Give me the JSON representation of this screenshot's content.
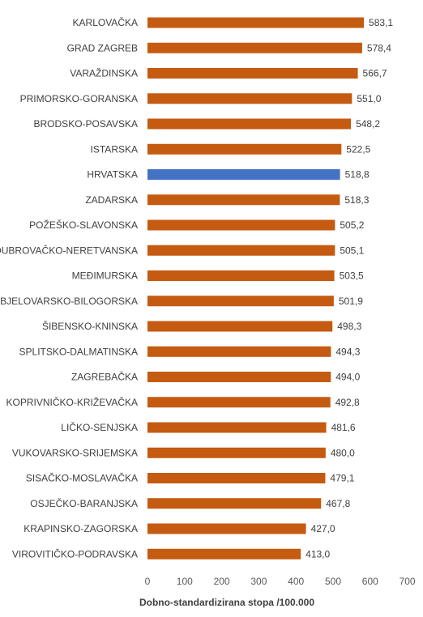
{
  "chart_data": {
    "type": "bar",
    "orientation": "horizontal",
    "xlabel": "Dobno-standardizirana stopa /100.000",
    "xlim": [
      0,
      700
    ],
    "xticks": [
      0,
      100,
      200,
      300,
      400,
      500,
      600,
      700
    ],
    "grid": false,
    "colors": {
      "default": "#C55A11",
      "highlight": "#4472C4"
    },
    "categories": [
      "KARLOVAČKA",
      "GRAD ZAGREB",
      "VARAŽDINSKA",
      "PRIMORSKO-GORANSKA",
      "BRODSKO-POSAVSKA",
      "ISTARSKA",
      "HRVATSKA",
      "ZADARSKA",
      "POŽEŠKO-SLAVONSKA",
      "DUBROVAČKO-NERETVANSKA",
      "MEĐIMURSKA",
      "BJELOVARSKO-BILOGORSKA",
      "ŠIBENSKO-KNINSKA",
      "SPLITSKO-DALMATINSKA",
      "ZAGREBAČKA",
      "KOPRIVNIČKO-KRIŽEVAČKA",
      "LIČKO-SENJSKA",
      "VUKOVARSKO-SRIJEMSKA",
      "SISAČKO-MOSLAVAČKA",
      "OSJEČKO-BARANJSKA",
      "KRAPINSKO-ZAGORSKA",
      "VIROVITIČKO-PODRAVSKA"
    ],
    "values": [
      583.1,
      578.4,
      566.7,
      551.0,
      548.2,
      522.5,
      518.8,
      518.3,
      505.2,
      505.1,
      503.5,
      501.9,
      498.3,
      494.3,
      494.0,
      492.8,
      481.6,
      480.0,
      479.1,
      467.8,
      427.0,
      413.0
    ],
    "value_labels": [
      "583,1",
      "578,4",
      "566,7",
      "551,0",
      "548,2",
      "522,5",
      "518,8",
      "518,3",
      "505,2",
      "505,1",
      "503,5",
      "501,9",
      "498,3",
      "494,3",
      "494,0",
      "492,8",
      "481,6",
      "480,0",
      "479,1",
      "467,8",
      "427,0",
      "413,0"
    ],
    "highlight_category": "HRVATSKA"
  }
}
